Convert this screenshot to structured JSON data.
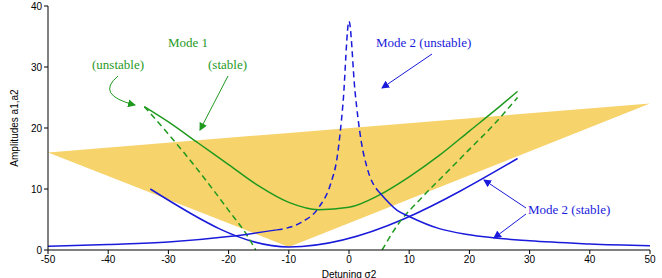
{
  "chart_data": {
    "type": "line",
    "x_label": "Detuning σ2",
    "y_label": "Amplitudes a1,a2",
    "xlim": [
      -50,
      50
    ],
    "xticks": [
      -50,
      -40,
      -30,
      -20,
      -10,
      0,
      10,
      20,
      30,
      40,
      50
    ],
    "ylim": [
      0,
      40
    ],
    "yticks": [
      0,
      10,
      20,
      30,
      40
    ],
    "grid": false,
    "annotations": [
      {
        "text": "Mode 1",
        "color": "#1f9a1f"
      },
      {
        "text": "(unstable)",
        "color": "#1f9a1f"
      },
      {
        "text": "(stable)",
        "color": "#1f9a1f"
      },
      {
        "text": "Mode 2 (unstable)",
        "color": "#1a1adb"
      },
      {
        "text": "Mode 2 (stable)",
        "color": "#1a1adb"
      }
    ],
    "series": [
      {
        "type": "area",
        "color": "#f7d36b",
        "x": [
          -50,
          -10,
          50
        ],
        "values": [
          16,
          19.2,
          24
        ],
        "low": [
          16,
          0.5,
          24
        ]
      },
      {
        "type": "line",
        "color": "#1a1adb",
        "line_style": "solid",
        "x": [
          -33,
          -10,
          28
        ],
        "values": [
          10,
          0.5,
          15
        ]
      },
      {
        "type": "line",
        "color": "#1f9a1f",
        "line_style": "solid",
        "x": [
          -34,
          -30,
          -25,
          -20,
          -15,
          -10,
          -5,
          0,
          5,
          10,
          15,
          20,
          25,
          28
        ],
        "values": [
          23.5,
          21,
          17.5,
          14,
          10.5,
          7.8,
          6.6,
          7,
          9,
          12,
          15.5,
          19.5,
          23.5,
          26
        ]
      },
      {
        "type": "line",
        "color": "#1f9a1f",
        "line_style": "dashed",
        "x": [
          -34,
          -30,
          -25,
          -20,
          -17,
          -15.5
        ],
        "values": [
          23.5,
          19,
          13,
          6.5,
          2.5,
          0
        ]
      },
      {
        "type": "line",
        "color": "#1f9a1f",
        "line_style": "dashed",
        "x": [
          5.5,
          8,
          12,
          16,
          20,
          24,
          28
        ],
        "values": [
          0,
          4,
          8.5,
          12.5,
          16.5,
          20.5,
          25
        ]
      },
      {
        "type": "line",
        "color": "#1a1adb",
        "line_style": "solid",
        "x": [
          -50,
          -40,
          -30,
          -20,
          -12
        ],
        "values": [
          0.6,
          0.9,
          1.3,
          2.2,
          3.3
        ]
      },
      {
        "type": "line",
        "color": "#1a1adb",
        "line_style": "dashed",
        "x": [
          -12,
          -8,
          -5,
          -3,
          -2,
          -1,
          0,
          1,
          2,
          3,
          5
        ],
        "values": [
          3.3,
          4.5,
          7,
          11,
          15,
          24,
          37.5,
          26,
          18,
          13.5,
          9.5
        ]
      },
      {
        "type": "line",
        "color": "#1a1adb",
        "line_style": "solid",
        "x": [
          5,
          8,
          10,
          15,
          20,
          30,
          40,
          50
        ],
        "values": [
          9.5,
          6.5,
          5.5,
          3.5,
          2.5,
          1.5,
          1,
          0.7
        ]
      }
    ]
  }
}
